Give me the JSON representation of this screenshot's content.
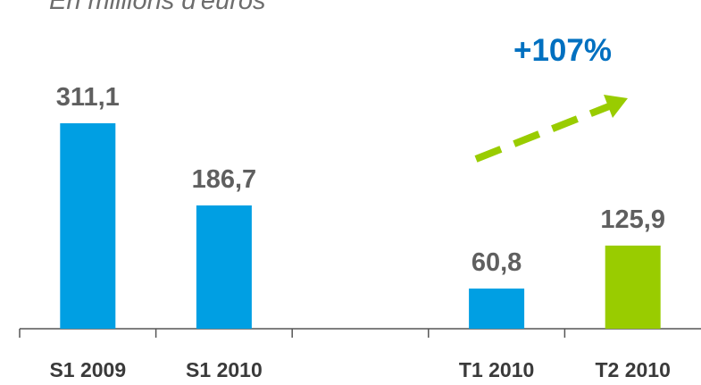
{
  "chart_data": {
    "type": "bar",
    "subtitle": "En millions d'euros",
    "categories": [
      "S1 2009",
      "S1 2010",
      null,
      "T1 2010",
      "T2 2010"
    ],
    "values": [
      311.1,
      186.7,
      null,
      60.8,
      125.9
    ],
    "value_labels": [
      "311,1",
      "186,7",
      null,
      "60,8",
      "125,9"
    ],
    "colors": [
      "#009fe3",
      "#009fe3",
      null,
      "#009fe3",
      "#99cc00"
    ],
    "annotation": "+107%"
  }
}
